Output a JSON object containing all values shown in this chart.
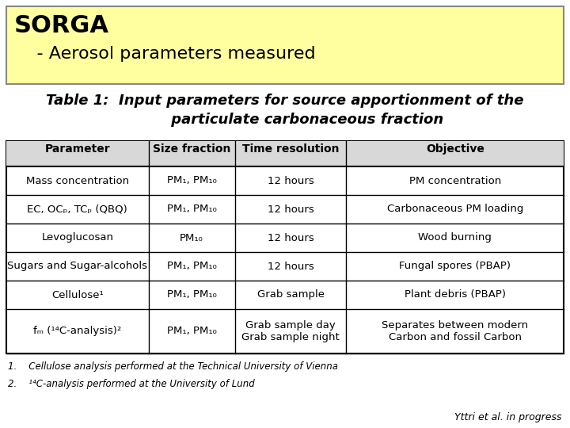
{
  "title_box_text1": "SORGA",
  "title_box_text2": "    - Aerosol parameters measured",
  "title_box_bg": "#ffffa0",
  "title_box_border": "#aaaaaa",
  "subtitle_line1": "Table 1:  Input parameters for source apportionment of the",
  "subtitle_line2": "         particulate carbonaceous fraction",
  "table_headers": [
    "Parameter",
    "Size fraction",
    "Time resolution",
    "Objective"
  ],
  "table_rows": [
    [
      "Mass concentration",
      "PM₁, PM₁₀",
      "12 hours",
      "PM concentration"
    ],
    [
      "EC, OCₚ, TCₚ (QBQ)",
      "PM₁, PM₁₀",
      "12 hours",
      "Carbonaceous PM loading"
    ],
    [
      "Levoglucosan",
      "PM₁₀",
      "12 hours",
      "Wood burning"
    ],
    [
      "Sugars and Sugar-alcohols",
      "PM₁, PM₁₀",
      "12 hours",
      "Fungal spores (PBAP)"
    ],
    [
      "Cellulose¹",
      "PM₁, PM₁₀",
      "Grab sample",
      "Plant debris (PBAP)"
    ],
    [
      "fₘ (¹⁴C-analysis)²",
      "PM₁, PM₁₀",
      "Grab sample day\nGrab sample night",
      "Separates between modern\nCarbon and fossil Carbon"
    ]
  ],
  "footnote1": "1.    Cellulose analysis performed at the Technical University of Vienna",
  "footnote2": "2.    ¹⁴C-analysis performed at the University of Lund",
  "credit": "Yttri et al. in progress",
  "header_bg": "#d8d8d8",
  "bg_color": "#ffffff"
}
